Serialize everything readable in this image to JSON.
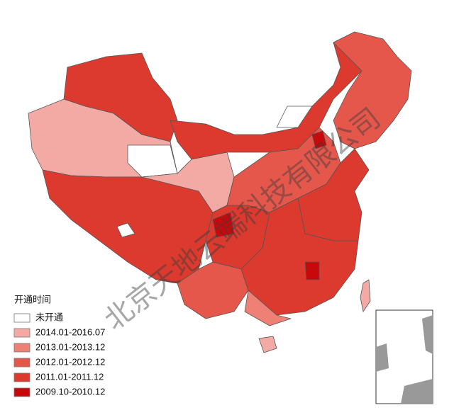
{
  "legend": {
    "title": "开通时间",
    "items": [
      {
        "label": "未开通",
        "color": "#ffffff"
      },
      {
        "label": "2014.01-2016.07",
        "color": "#f4aaa4"
      },
      {
        "label": "2013.01-2013.12",
        "color": "#ee8075"
      },
      {
        "label": "2012.01-2012.12",
        "color": "#e5574b"
      },
      {
        "label": "2011.01-2011.12",
        "color": "#dc3a2e"
      },
      {
        "label": "2009.10-2010.12",
        "color": "#c8090c"
      }
    ]
  },
  "watermark": "北京天地云端科技有限公司"
}
